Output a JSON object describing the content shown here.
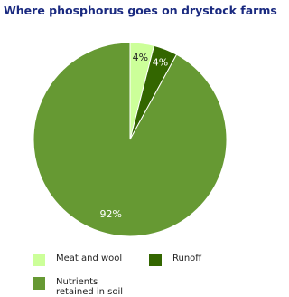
{
  "chart_data": {
    "type": "pie",
    "title": "Where phosphorus goes on drystock farms",
    "categories": [
      "Meat and wool",
      "Runoff",
      "Nutrients retained in soil"
    ],
    "values": [
      4,
      4,
      92
    ],
    "value_labels": [
      "4%",
      "4%",
      "92%"
    ],
    "colors": [
      "#ccff99",
      "#336600",
      "#669933"
    ]
  }
}
